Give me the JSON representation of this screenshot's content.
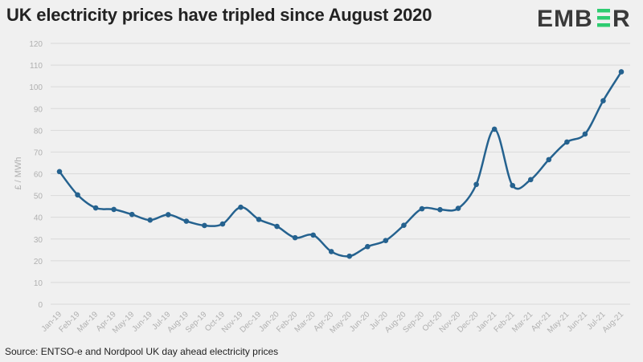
{
  "chart_data": {
    "type": "line",
    "title": "UK electricity prices have tripled since August 2020",
    "xlabel": "",
    "ylabel": "£ / MWh",
    "ylim": [
      0,
      120
    ],
    "yticks": [
      0,
      10,
      20,
      30,
      40,
      50,
      60,
      70,
      80,
      90,
      100,
      110,
      120
    ],
    "grid": true,
    "smooth": true,
    "categories": [
      "Jan-19",
      "Feb-19",
      "Mar-19",
      "Apr-19",
      "May-19",
      "Jun-19",
      "Jul-19",
      "Aug-19",
      "Sep-19",
      "Oct-19",
      "Nov-19",
      "Dec-19",
      "Jan-20",
      "Feb-20",
      "Mar-20",
      "Apr-20",
      "May-20",
      "Jun-20",
      "Jul-20",
      "Aug-20",
      "Sep-20",
      "Oct-20",
      "Nov-20",
      "Dec-20",
      "Jan-21",
      "Feb-21",
      "Mar-21",
      "Apr-21",
      "May-21",
      "Jun-21",
      "Jul-21",
      "Aug-21"
    ],
    "values": [
      61,
      50.3,
      44.3,
      43.6,
      41.3,
      38.7,
      41.2,
      38.2,
      36.2,
      36.9,
      44.6,
      39,
      35.8,
      30.6,
      31.8,
      24.2,
      22.1,
      26.5,
      29.3,
      36.3,
      43.9,
      43.5,
      44.1,
      55.1,
      80.5,
      54.6,
      57.3,
      66.5,
      74.6,
      78.3,
      93.6,
      106.9
    ],
    "line_color": "#25628f",
    "grid_color": "#d9d9d9",
    "tick_color": "#b0b0b0"
  },
  "source": "Source: ENTSO-e and Nordpool UK day ahead electricity prices",
  "logo": {
    "text": "EMBER",
    "dark": "#3a3a3a",
    "accent": "#2ecc71"
  }
}
